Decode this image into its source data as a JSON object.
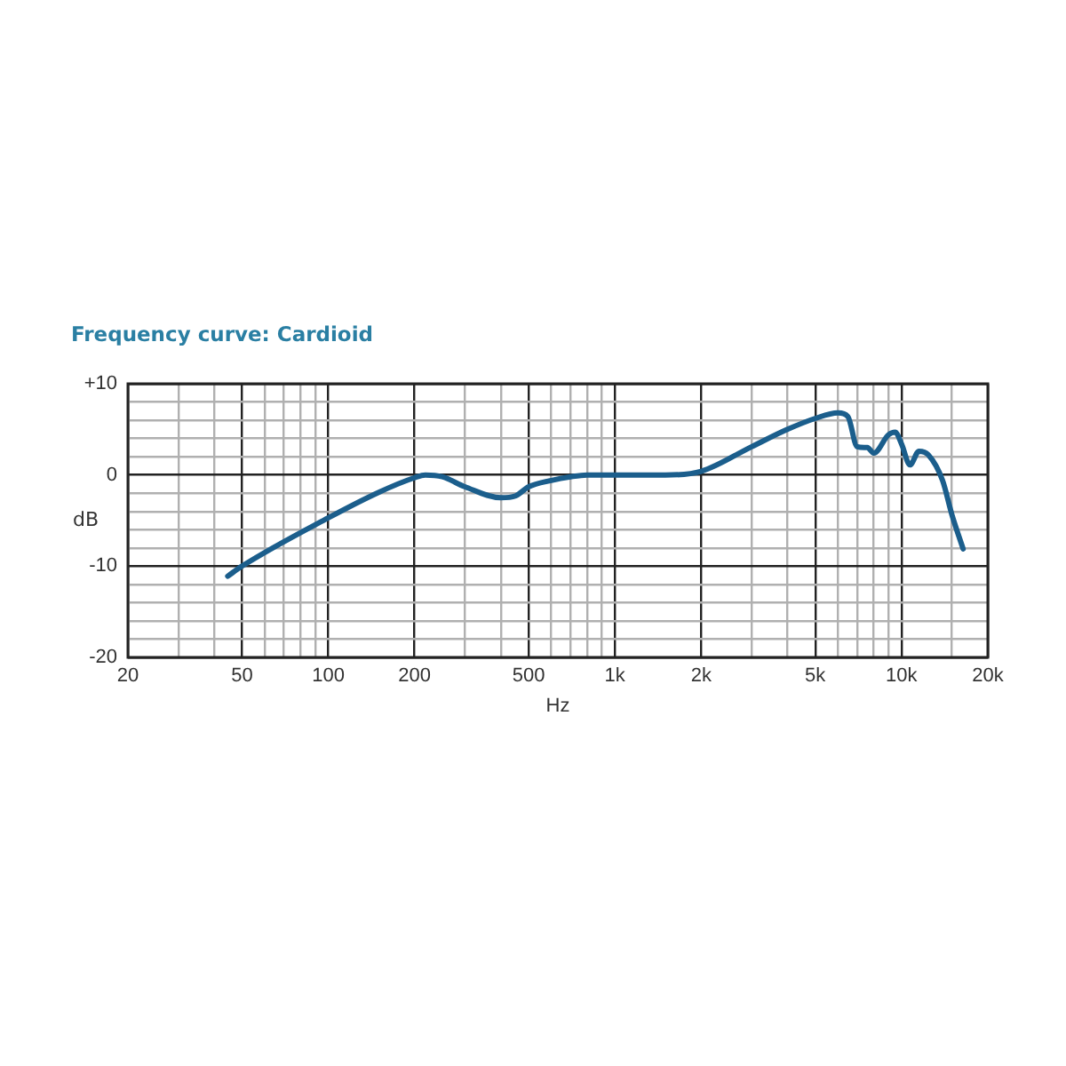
{
  "chart_data": {
    "type": "line",
    "title": "Frequency curve: Cardioid",
    "xlabel": "Hz",
    "ylabel": "dB",
    "log": "x",
    "grid": true,
    "legend": false,
    "marker": "none",
    "line_style": "solid",
    "xlim": [
      20,
      20000
    ],
    "xticks": [
      20,
      {
        "value": 30,
        "label": null
      },
      {
        "value": 40,
        "label": null
      },
      50,
      {
        "value": 60,
        "label": null
      },
      {
        "value": 70,
        "label": null
      },
      {
        "value": 80,
        "label": null
      },
      {
        "value": 90,
        "label": null
      },
      100,
      200,
      {
        "value": 300,
        "label": null
      },
      {
        "value": 400,
        "label": null
      },
      500,
      {
        "value": 600,
        "label": null
      },
      {
        "value": 700,
        "label": null
      },
      {
        "value": 800,
        "label": null
      },
      {
        "value": 900,
        "label": null
      },
      {
        "value": 1000,
        "label": "1k"
      },
      {
        "value": 2000,
        "label": "2k"
      },
      {
        "value": 3000,
        "label": null
      },
      {
        "value": 4000,
        "label": null
      },
      {
        "value": 5000,
        "label": "5k"
      },
      {
        "value": 6000,
        "label": null
      },
      {
        "value": 7000,
        "label": null
      },
      {
        "value": 8000,
        "label": null
      },
      {
        "value": 9000,
        "label": null
      },
      {
        "value": 10000,
        "label": "10k"
      },
      {
        "value": 15000,
        "label": null
      },
      {
        "value": 20000,
        "label": "20k"
      }
    ],
    "ylim": [
      -20,
      10
    ],
    "yticks": [
      -20,
      {
        "value": -18,
        "label": null
      },
      {
        "value": -16,
        "label": null
      },
      {
        "value": -14,
        "label": null
      },
      {
        "value": -12,
        "label": null
      },
      -10,
      {
        "value": -8,
        "label": null
      },
      {
        "value": -6,
        "label": null
      },
      {
        "value": -4,
        "label": null
      },
      {
        "value": -2,
        "label": null
      },
      0,
      {
        "value": 2,
        "label": null
      },
      {
        "value": 4,
        "label": null
      },
      {
        "value": 6,
        "label": null
      },
      {
        "value": 8,
        "label": null
      },
      {
        "value": 10,
        "label": "+10"
      }
    ],
    "series": [
      {
        "color": "#1b5e8c",
        "x": [
          44.6,
          50,
          100,
          150,
          200,
          218,
          250,
          300,
          400,
          450,
          500,
          600,
          700,
          800,
          1000,
          1500,
          2000,
          3000,
          4000,
          5000,
          6000,
          6500,
          7000,
          7600,
          8000,
          9000,
          9500,
          10000,
          10700,
          11500,
          12400,
          13900,
          15000,
          16400
        ],
        "values": [
          -11.1,
          -10,
          -4.7,
          -1.9,
          -0.3,
          0,
          -0.2,
          -1.3,
          -2.5,
          -2.3,
          -1.3,
          -0.6,
          -0.2,
          0,
          0,
          0,
          0.4,
          3.1,
          5,
          6.2,
          6.8,
          6.4,
          3.1,
          3,
          2.4,
          4.4,
          4.7,
          3.4,
          1.1,
          2.6,
          2.2,
          -0.6,
          -4.4,
          -8.1
        ]
      }
    ]
  }
}
